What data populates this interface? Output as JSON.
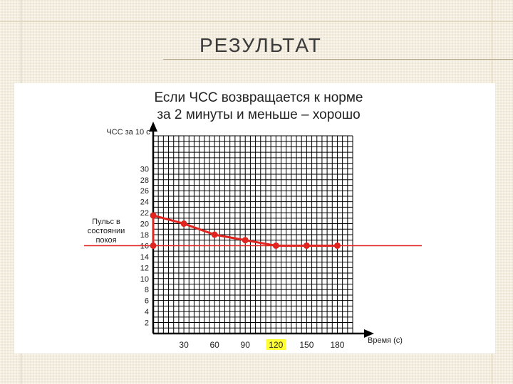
{
  "slide": {
    "title": "РЕЗУЛЬТАТ"
  },
  "chart_data": {
    "type": "line",
    "title_lines": [
      "Если ЧСС возвращается к норме",
      "за 2 минуты и меньше – хорошо"
    ],
    "ylabel": "ЧСС за 10 с",
    "xlabel": "Время (с)",
    "x_ticks": [
      30,
      60,
      90,
      120,
      150,
      180
    ],
    "highlighted_x_tick": 120,
    "y_ticks": [
      2,
      4,
      6,
      8,
      10,
      12,
      14,
      16,
      18,
      20,
      22,
      24,
      26,
      28,
      30
    ],
    "xlim": [
      0,
      195
    ],
    "ylim": [
      0,
      36
    ],
    "grid": true,
    "series": [
      {
        "x": [
          0,
          30,
          60,
          90,
          120,
          150,
          180
        ],
        "y": [
          21.5,
          20,
          18,
          17,
          16,
          16,
          16
        ],
        "color": "#e0241f"
      }
    ],
    "reference_line": {
      "y": 16,
      "label": "Пульс в состоянии покоя",
      "color": "#e0241f"
    },
    "colors": {
      "line": "#e0241f",
      "grid": "#000000",
      "highlight": "#ffff33"
    }
  }
}
